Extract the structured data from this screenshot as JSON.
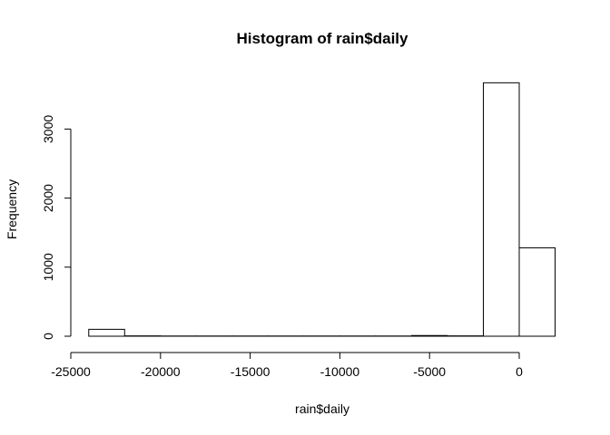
{
  "chart_data": {
    "type": "bar",
    "subtype": "histogram",
    "title": "Histogram of rain$daily",
    "xlabel": "rain$daily",
    "ylabel": "Frequency",
    "bin_width": 2000,
    "bins": [
      {
        "x0": -24000,
        "x1": -22000,
        "count": 100
      },
      {
        "x0": -22000,
        "x1": -20000,
        "count": 5
      },
      {
        "x0": -20000,
        "x1": -18000,
        "count": 3
      },
      {
        "x0": -18000,
        "x1": -16000,
        "count": 3
      },
      {
        "x0": -16000,
        "x1": -14000,
        "count": 3
      },
      {
        "x0": -14000,
        "x1": -12000,
        "count": 3
      },
      {
        "x0": -12000,
        "x1": -10000,
        "count": 3
      },
      {
        "x0": -10000,
        "x1": -8000,
        "count": 3
      },
      {
        "x0": -8000,
        "x1": -6000,
        "count": 3
      },
      {
        "x0": -6000,
        "x1": -4000,
        "count": 10
      },
      {
        "x0": -4000,
        "x1": -2000,
        "count": 5
      },
      {
        "x0": -2000,
        "x1": 0,
        "count": 3670
      },
      {
        "x0": 0,
        "x1": 2000,
        "count": 1280
      }
    ],
    "xticks": [
      -25000,
      -20000,
      -15000,
      -10000,
      -5000,
      0
    ],
    "xtick_labels": [
      "-25000",
      "-20000",
      "-15000",
      "-10000",
      "-5000",
      "0"
    ],
    "yticks": [
      0,
      1000,
      2000,
      3000
    ],
    "ytick_labels": [
      "0",
      "1000",
      "2000",
      "3000"
    ],
    "xlim": [
      -25000,
      2000
    ],
    "ylim": [
      0,
      3670
    ],
    "grid": false,
    "colors": {
      "bar_fill": "#ffffff",
      "bar_stroke": "#000000",
      "axis": "#000000"
    }
  }
}
